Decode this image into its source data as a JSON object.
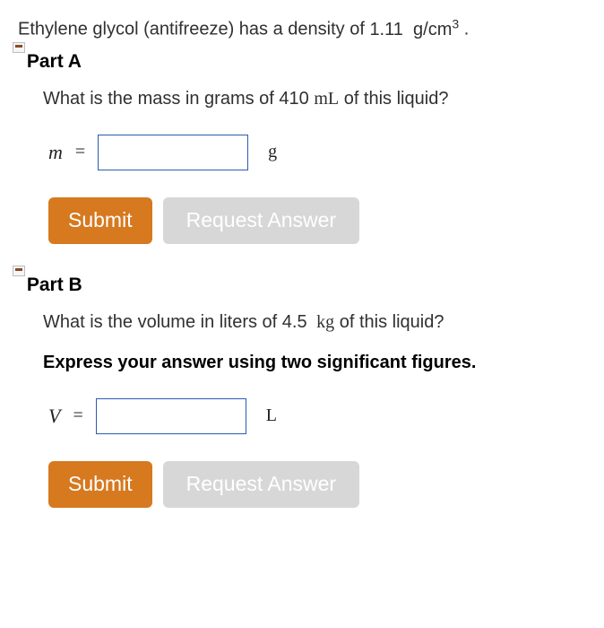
{
  "problem": {
    "prefix": "Ethylene glycol (antifreeze) has a density of ",
    "density_value": "1.11",
    "density_unit_base": "g/cm",
    "density_unit_exp": "3",
    "suffix": "."
  },
  "partA": {
    "header": "Part A",
    "question_prefix": "What is the mass in grams of ",
    "question_value": "410",
    "question_unit": "mL",
    "question_suffix": " of this liquid?",
    "variable": "m",
    "equals": "=",
    "unit": "g",
    "input_value": "",
    "submit_label": "Submit",
    "request_label": "Request Answer"
  },
  "partB": {
    "header": "Part B",
    "question_prefix": "What is the volume in liters of ",
    "question_value": "4.5",
    "question_unit": "kg",
    "question_suffix": " of this liquid?",
    "instruction": "Express your answer using two significant figures.",
    "variable": "V",
    "equals": "=",
    "unit": "L",
    "input_value": "",
    "submit_label": "Submit",
    "request_label": "Request Answer"
  }
}
